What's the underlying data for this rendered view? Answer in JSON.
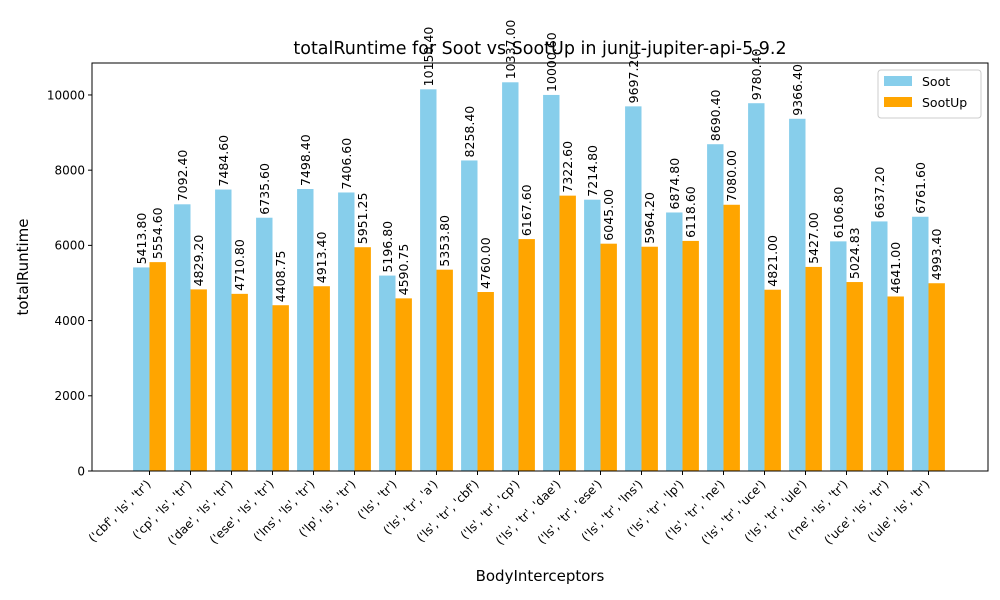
{
  "chart_data": {
    "type": "bar",
    "title": "totalRuntime for Soot vs SootUp in junit-jupiter-api-5.9.2",
    "xlabel": "BodyInterceptors",
    "ylabel": "totalRuntime",
    "ylim": [
      0,
      10850
    ],
    "yticks": [
      0,
      2000,
      4000,
      6000,
      8000,
      10000
    ],
    "yticks_text": [
      "0",
      "2000",
      "4000",
      "6000",
      "8000",
      "10000"
    ],
    "legend_position": "top-right",
    "grid": false,
    "categories": [
      "('cbf', 'ls', 'tr')",
      "('cp', 'ls', 'tr')",
      "('dae', 'ls', 'tr')",
      "('ese', 'ls', 'tr')",
      "('lns', 'ls', 'tr')",
      "('lp', 'ls', 'tr')",
      "('ls', 'tr')",
      "('ls', 'tr', 'a')",
      "('ls', 'tr', 'cbf')",
      "('ls', 'tr', 'cp')",
      "('ls', 'tr', 'dae')",
      "('ls', 'tr', 'ese')",
      "('ls', 'tr', 'lns')",
      "('ls', 'tr', 'lp')",
      "('ls', 'tr', 'ne')",
      "('ls', 'tr', 'uce')",
      "('ls', 'tr', 'ule')",
      "('ne', 'ls', 'tr')",
      "('uce', 'ls', 'tr')",
      "('ule', 'ls', 'tr')"
    ],
    "series": [
      {
        "name": "Soot",
        "color": "#87ceeb",
        "values": [
          5413.8,
          7092.4,
          7484.6,
          6735.6,
          7498.4,
          7406.6,
          5196.8,
          10150.4,
          8258.4,
          10337.0,
          10000.6,
          7214.8,
          9697.2,
          6874.8,
          8690.4,
          9780.4,
          9366.4,
          6106.8,
          6637.2,
          6761.6
        ],
        "labels": [
          "5413.80",
          "7092.40",
          "7484.60",
          "6735.60",
          "7498.40",
          "7406.60",
          "5196.80",
          "10150.40",
          "8258.40",
          "10337.00",
          "10000.60",
          "7214.80",
          "9697.20",
          "6874.80",
          "8690.40",
          "9780.40",
          "9366.40",
          "6106.80",
          "6637.20",
          "6761.60"
        ]
      },
      {
        "name": "SootUp",
        "color": "#ffa500",
        "values": [
          5554.6,
          4829.2,
          4710.8,
          4408.75,
          4913.4,
          5951.25,
          4590.75,
          5353.8,
          4760.0,
          6167.6,
          7322.6,
          6045.0,
          5964.2,
          6118.6,
          7080.0,
          4821.0,
          5427.0,
          5024.83,
          4641.0,
          4993.4
        ],
        "labels": [
          "5554.60",
          "4829.20",
          "4710.80",
          "4408.75",
          "4913.40",
          "5951.25",
          "4590.75",
          "5353.80",
          "4760.00",
          "6167.60",
          "7322.60",
          "6045.00",
          "5964.20",
          "6118.60",
          "7080.00",
          "4821.00",
          "5427.00",
          "5024.83",
          "4641.00",
          "4993.40"
        ]
      }
    ]
  }
}
